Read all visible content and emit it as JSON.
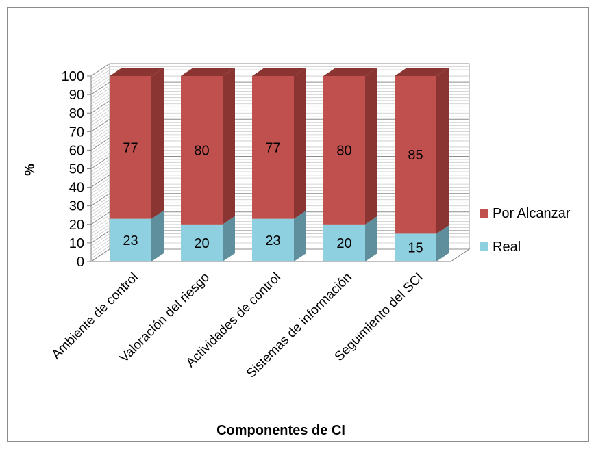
{
  "chart_data": {
    "type": "bar",
    "stacked": true,
    "three_d": true,
    "categories": [
      "Ambiente de control",
      "Valoración del riesgo",
      "Actividades de control",
      "Sistemas de información",
      "Seguimiento del SCI"
    ],
    "series": [
      {
        "name": "Real",
        "values": [
          23,
          20,
          23,
          20,
          15
        ],
        "color": "#8ecfe0",
        "side_color": "#5f8f9c"
      },
      {
        "name": "Por Alcanzar",
        "values": [
          77,
          80,
          77,
          80,
          85
        ],
        "color": "#c0504d",
        "side_color": "#8b3533"
      }
    ],
    "title": "",
    "xlabel": "Componentes de CI",
    "ylabel": "%",
    "ylim": [
      0,
      100
    ],
    "yticks": [
      "0",
      "10",
      "20",
      "30",
      "40",
      "50",
      "60",
      "70",
      "80",
      "90",
      "100"
    ],
    "grid": true,
    "legend": "right",
    "legend_order": [
      "Por Alcanzar",
      "Real"
    ]
  }
}
